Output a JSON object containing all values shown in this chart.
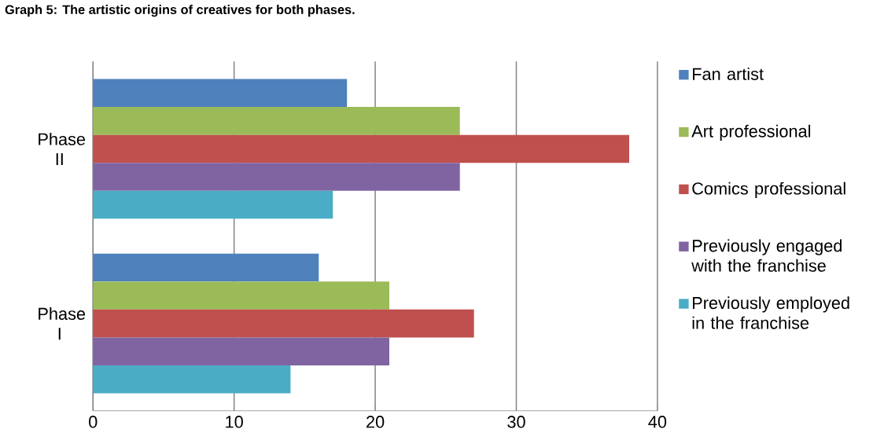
{
  "chart_data": {
    "type": "bar",
    "orientation": "horizontal",
    "title": "Graph 5: The artistic origins of creatives for both phases.",
    "categories": [
      "Phase II",
      "Phase I"
    ],
    "series": [
      {
        "name": "Fan artist",
        "color": "#4f81bd",
        "values": [
          18,
          16
        ]
      },
      {
        "name": "Art professional",
        "color": "#9bbb59",
        "values": [
          26,
          21
        ]
      },
      {
        "name": "Comics professional",
        "color": "#c0504d",
        "values": [
          38,
          27
        ]
      },
      {
        "name": "Previously engaged with the franchise",
        "color": "#8064a2",
        "values": [
          26,
          21
        ]
      },
      {
        "name": "Previously employed in the franchise",
        "color": "#4bacc6",
        "values": [
          17,
          14
        ]
      }
    ],
    "xlim": [
      0,
      40
    ],
    "xticks": [
      0,
      10,
      20,
      30,
      40
    ],
    "grid": "x",
    "legend": "right"
  }
}
